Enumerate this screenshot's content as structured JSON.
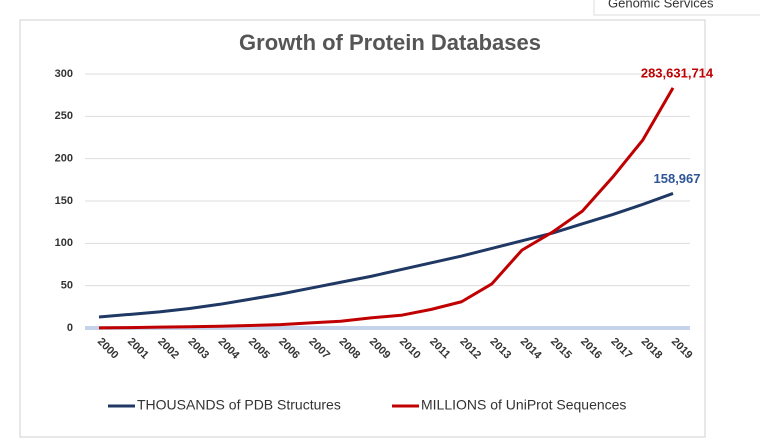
{
  "header": {
    "tab": "Genomic Services"
  },
  "chart_data": {
    "type": "line",
    "title": "Growth of Protein Databases",
    "categories": [
      "2000",
      "2001",
      "2002",
      "2003",
      "2004",
      "2005",
      "2006",
      "2007",
      "2008",
      "2009",
      "2010",
      "2011",
      "2012",
      "2013",
      "2014",
      "2015",
      "2016",
      "2017",
      "2018",
      "2019"
    ],
    "series": [
      {
        "name": "THOUSANDS of PDB Structures",
        "color": "#1f3864",
        "values": [
          13,
          16,
          19,
          23,
          28,
          34,
          40,
          47,
          54,
          61,
          69,
          77,
          85,
          94,
          103,
          112,
          123,
          134,
          146,
          158.967
        ],
        "value_labels": [
          null,
          null,
          null,
          null,
          null,
          null,
          null,
          null,
          null,
          null,
          null,
          null,
          null,
          null,
          null,
          null,
          null,
          null,
          null,
          "158,967"
        ],
        "label_color": "#2f5597"
      },
      {
        "name": "MILLIONS of UniProt Sequences",
        "color": "#c00000",
        "values": [
          0.1,
          0.5,
          1,
          1.5,
          2,
          3,
          4,
          6,
          8,
          12,
          15,
          22,
          31,
          52,
          92,
          113,
          138,
          178,
          222,
          283.631714
        ],
        "value_labels": [
          null,
          null,
          null,
          null,
          null,
          null,
          null,
          null,
          null,
          null,
          null,
          null,
          null,
          null,
          null,
          null,
          null,
          null,
          null,
          "283,631,714"
        ],
        "label_color": "#c00000"
      }
    ],
    "ylim": [
      0,
      300
    ],
    "yticks": [
      0,
      50,
      100,
      150,
      200,
      250,
      300
    ],
    "grid": true,
    "legend": "bottom"
  }
}
